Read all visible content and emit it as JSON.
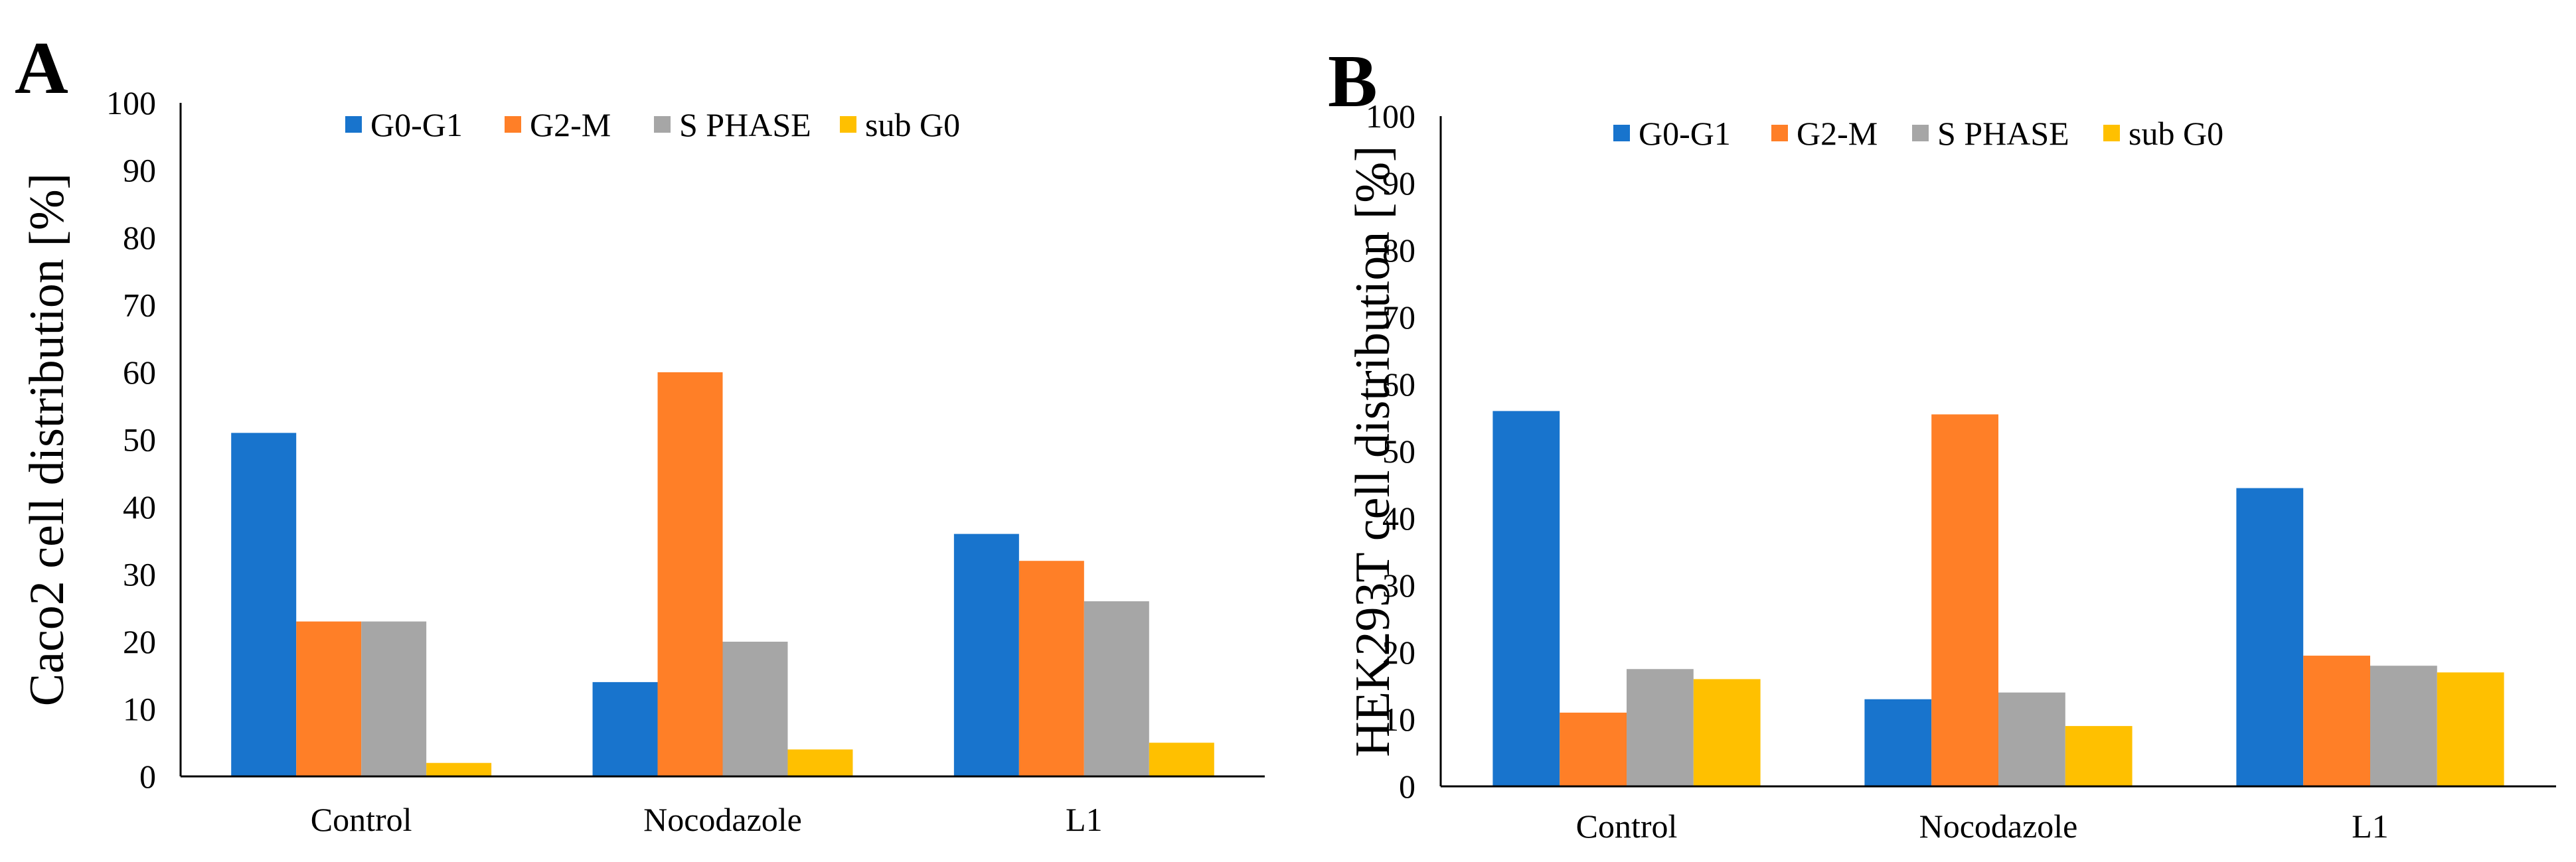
{
  "chart_data": [
    {
      "type": "bar",
      "panel_label": "A",
      "title": "",
      "xlabel": "",
      "ylabel": "Caco2 cell distribution [%]",
      "ylim": [
        0,
        100
      ],
      "yticks": [
        0,
        10,
        20,
        30,
        40,
        50,
        60,
        70,
        80,
        90,
        100
      ],
      "grid": false,
      "legend_position": "top-center",
      "categories": [
        "Control",
        "Nocodazole",
        "L1"
      ],
      "series": [
        {
          "name": "G0-G1",
          "color": "#1874CD",
          "values": [
            51,
            14,
            36
          ]
        },
        {
          "name": "G2-M",
          "color": "#FF7F27",
          "values": [
            23,
            60,
            32
          ]
        },
        {
          "name": "S PHASE",
          "color": "#A6A6A6",
          "values": [
            23,
            20,
            26
          ]
        },
        {
          "name": "sub G0",
          "color": "#FFC000",
          "values": [
            2,
            4,
            5
          ]
        }
      ]
    },
    {
      "type": "bar",
      "panel_label": "B",
      "title": "",
      "xlabel": "",
      "ylabel": "HEK293T cell distribution [%]",
      "ylim": [
        0,
        100
      ],
      "yticks": [
        0,
        10,
        20,
        30,
        40,
        50,
        60,
        70,
        80,
        90,
        100
      ],
      "grid": false,
      "legend_position": "top-center",
      "categories": [
        "Control",
        "Nocodazole",
        "L1"
      ],
      "series": [
        {
          "name": "G0-G1",
          "color": "#1874CD",
          "values": [
            56,
            13,
            44.5
          ]
        },
        {
          "name": "G2-M",
          "color": "#FF7F27",
          "values": [
            11,
            55.5,
            19.5
          ]
        },
        {
          "name": "S PHASE",
          "color": "#A6A6A6",
          "values": [
            17.5,
            14,
            18
          ]
        },
        {
          "name": "sub G0",
          "color": "#FFC000",
          "values": [
            16,
            9,
            17
          ]
        }
      ]
    }
  ]
}
